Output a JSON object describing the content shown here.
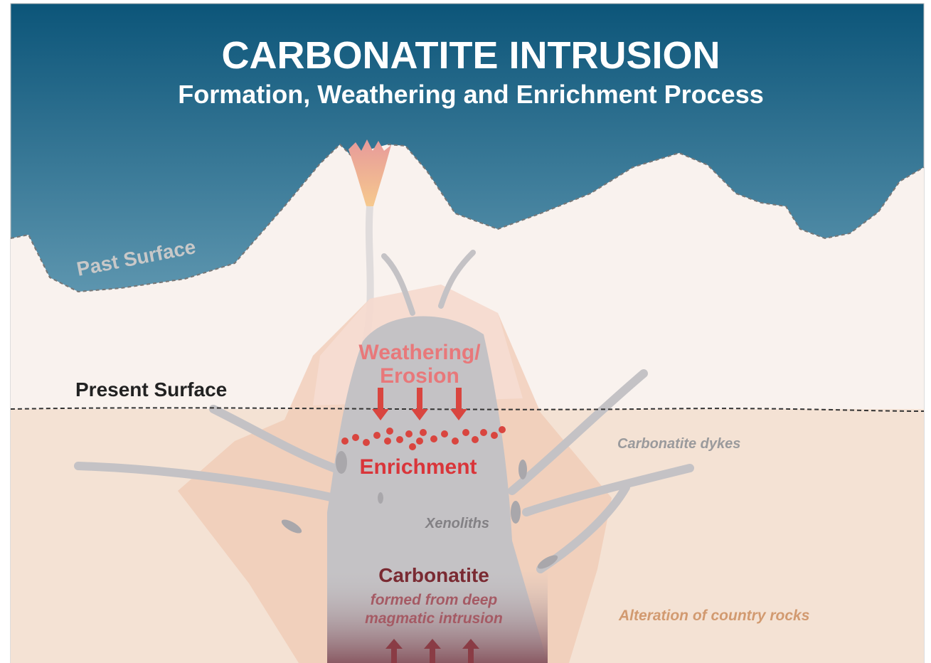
{
  "header": {
    "title": "CARBONATITE INTRUSION",
    "subtitle": "Formation, Weathering and Enrichment Process"
  },
  "labels": {
    "past_surface": "Past Surface",
    "present_surface": "Present Surface",
    "weathering": [
      "Weathering/",
      "Erosion"
    ],
    "enrichment": "Enrichment",
    "carbonatite_dykes": "Carbonatite dykes",
    "xenoliths": "Xenoliths",
    "carbonatite": "Carbonatite",
    "carbonatite_note": [
      "formed from deep",
      "magmatic intrusion"
    ],
    "alteration": "Alteration of country rocks"
  }
}
